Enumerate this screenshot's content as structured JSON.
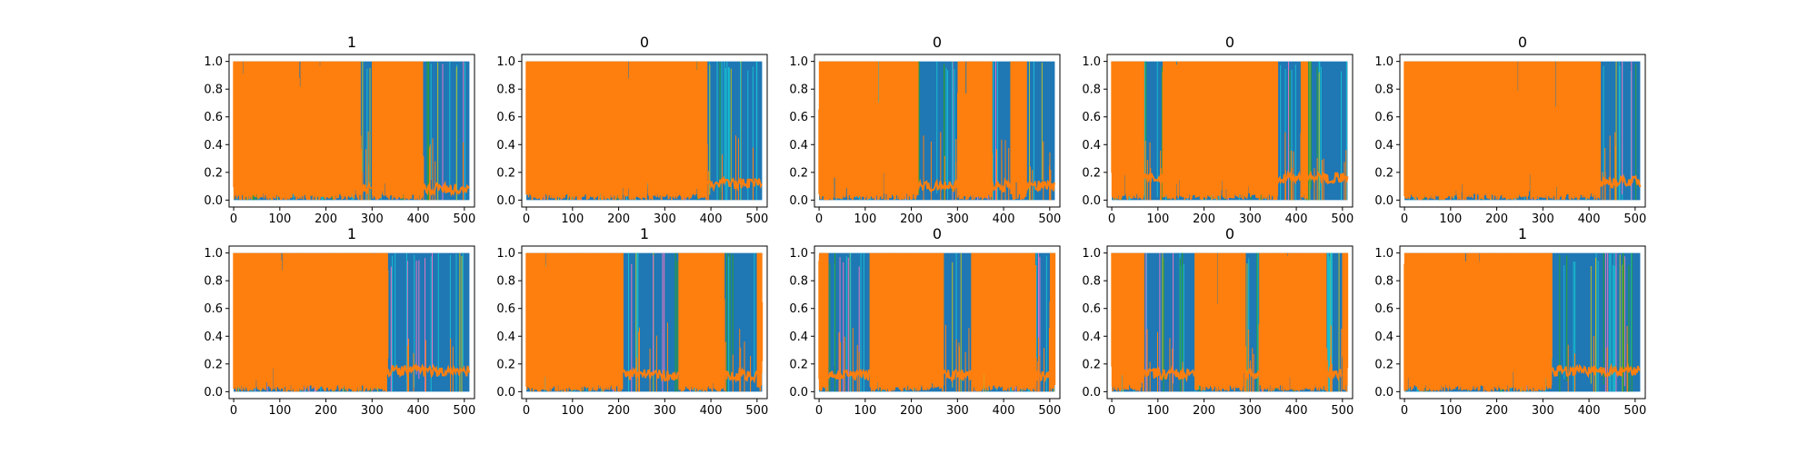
{
  "chart_data": [
    {
      "type": "line",
      "title": "1",
      "xlim": [
        -10,
        522
      ],
      "ylim": [
        -0.05,
        1.05
      ],
      "xticks": [
        "0",
        "100",
        "200",
        "300",
        "400",
        "500"
      ],
      "yticks": [
        "0.0",
        "0.2",
        "0.4",
        "0.6",
        "0.8",
        "1.0"
      ],
      "series": [
        {
          "color": "#1f77b4",
          "note": "background fill",
          "x": [
            0,
            511
          ],
          "y": [
            0,
            1
          ]
        },
        {
          "color": "#ff7f0e",
          "step_x": 415,
          "y_before": [
            0.02,
            1.0
          ],
          "y_after_baseline": 0.08
        }
      ],
      "blue_blocks": [
        [
          275,
          300
        ],
        [
          410,
          511
        ]
      ]
    },
    {
      "type": "line",
      "title": "0",
      "xlim": [
        -10,
        522
      ],
      "ylim": [
        -0.05,
        1.05
      ],
      "xticks": [
        "0",
        "100",
        "200",
        "300",
        "400",
        "500"
      ],
      "yticks": [
        "0.0",
        "0.2",
        "0.4",
        "0.6",
        "0.8",
        "1.0"
      ],
      "series": [
        {
          "color": "#1f77b4",
          "x": [
            0,
            511
          ],
          "y": [
            0,
            1
          ]
        },
        {
          "color": "#ff7f0e",
          "step_x": 392,
          "y_before": [
            0.05,
            1.0
          ],
          "y_after_baseline": 0.12
        }
      ],
      "blue_blocks": [
        [
          392,
          511
        ]
      ]
    },
    {
      "type": "line",
      "title": "0",
      "xlim": [
        -10,
        522
      ],
      "ylim": [
        -0.05,
        1.05
      ],
      "xticks": [
        "0",
        "100",
        "200",
        "300",
        "400",
        "500"
      ],
      "yticks": [
        "0.0",
        "0.2",
        "0.4",
        "0.6",
        "0.8",
        "1.0"
      ],
      "series": [
        {
          "color": "#1f77b4",
          "x": [
            0,
            511
          ],
          "y": [
            0,
            1
          ]
        },
        {
          "color": "#ff7f0e",
          "step_x": 450,
          "y_before": [
            0.05,
            1.0
          ],
          "y_after_baseline": 0.1
        }
      ],
      "blue_blocks": [
        [
          215,
          300
        ],
        [
          375,
          415
        ],
        [
          450,
          511
        ]
      ]
    },
    {
      "type": "line",
      "title": "0",
      "xlim": [
        -10,
        522
      ],
      "ylim": [
        -0.05,
        1.05
      ],
      "xticks": [
        "0",
        "100",
        "200",
        "300",
        "400",
        "500"
      ],
      "yticks": [
        "0.0",
        "0.2",
        "0.4",
        "0.6",
        "0.8",
        "1.0"
      ],
      "series": [
        {
          "color": "#1f77b4",
          "x": [
            0,
            511
          ],
          "y": [
            0,
            1
          ]
        },
        {
          "color": "#ff7f0e",
          "step_x": 425,
          "y_before": [
            0.05,
            1.0
          ],
          "y_after_baseline": 0.16
        }
      ],
      "blue_blocks": [
        [
          70,
          110
        ],
        [
          360,
          410
        ],
        [
          425,
          511
        ]
      ]
    },
    {
      "type": "line",
      "title": "0",
      "xlim": [
        -10,
        522
      ],
      "ylim": [
        -0.05,
        1.05
      ],
      "xticks": [
        "0",
        "100",
        "200",
        "300",
        "400",
        "500"
      ],
      "yticks": [
        "0.0",
        "0.2",
        "0.4",
        "0.6",
        "0.8",
        "1.0"
      ],
      "series": [
        {
          "color": "#1f77b4",
          "x": [
            0,
            511
          ],
          "y": [
            0,
            1
          ]
        },
        {
          "color": "#ff7f0e",
          "step_x": 425,
          "y_before": [
            0.05,
            1.0
          ],
          "y_after_baseline": 0.13
        }
      ],
      "blue_blocks": [
        [
          425,
          511
        ]
      ]
    },
    {
      "type": "line",
      "title": "1",
      "xlim": [
        -10,
        522
      ],
      "ylim": [
        -0.05,
        1.05
      ],
      "xticks": [
        "0",
        "100",
        "200",
        "300",
        "400",
        "500"
      ],
      "yticks": [
        "0.0",
        "0.2",
        "0.4",
        "0.6",
        "0.8",
        "1.0"
      ],
      "series": [
        {
          "color": "#1f77b4",
          "x": [
            0,
            511
          ],
          "y": [
            0,
            1
          ]
        },
        {
          "color": "#ff7f0e",
          "step_x": 385,
          "y_before": [
            0.05,
            1.0
          ],
          "y_after_baseline": 0.15
        }
      ],
      "blue_blocks": [
        [
          335,
          511
        ]
      ]
    },
    {
      "type": "line",
      "title": "1",
      "xlim": [
        -10,
        522
      ],
      "ylim": [
        -0.05,
        1.05
      ],
      "xticks": [
        "0",
        "100",
        "200",
        "300",
        "400",
        "500"
      ],
      "yticks": [
        "0.0",
        "0.2",
        "0.4",
        "0.6",
        "0.8",
        "1.0"
      ],
      "series": [
        {
          "color": "#1f77b4",
          "x": [
            0,
            511
          ],
          "y": [
            0,
            1
          ]
        },
        {
          "color": "#ff7f0e",
          "step_x": 210,
          "y_before": [
            0.05,
            1.0
          ],
          "y_after_baseline": 0.12
        }
      ],
      "blue_blocks": [
        [
          210,
          330
        ],
        [
          430,
          500
        ]
      ]
    },
    {
      "type": "line",
      "title": "0",
      "xlim": [
        -10,
        522
      ],
      "ylim": [
        -0.05,
        1.05
      ],
      "xticks": [
        "0",
        "100",
        "200",
        "300",
        "400",
        "500"
      ],
      "yticks": [
        "0.0",
        "0.2",
        "0.4",
        "0.6",
        "0.8",
        "1.0"
      ],
      "series": [
        {
          "color": "#1f77b4",
          "x": [
            0,
            511
          ],
          "y": [
            0,
            1
          ]
        },
        {
          "color": "#ff7f0e",
          "step_x": 20,
          "y_before": [
            0.05,
            1.0
          ],
          "y_after_baseline": 0.12
        }
      ],
      "blue_blocks": [
        [
          20,
          110
        ],
        [
          270,
          330
        ],
        [
          470,
          500
        ]
      ]
    },
    {
      "type": "line",
      "title": "0",
      "xlim": [
        -10,
        522
      ],
      "ylim": [
        -0.05,
        1.05
      ],
      "xticks": [
        "0",
        "100",
        "200",
        "300",
        "400",
        "500"
      ],
      "yticks": [
        "0.0",
        "0.2",
        "0.4",
        "0.6",
        "0.8",
        "1.0"
      ],
      "series": [
        {
          "color": "#1f77b4",
          "x": [
            0,
            511
          ],
          "y": [
            0,
            1
          ]
        },
        {
          "color": "#ff7f0e",
          "step_x": 70,
          "y_before": [
            0.05,
            1.0
          ],
          "y_after_baseline": 0.13
        }
      ],
      "blue_blocks": [
        [
          70,
          180
        ],
        [
          290,
          320
        ],
        [
          465,
          500
        ]
      ]
    },
    {
      "type": "line",
      "title": "1",
      "xlim": [
        -10,
        522
      ],
      "ylim": [
        -0.05,
        1.05
      ],
      "xticks": [
        "0",
        "100",
        "200",
        "300",
        "400",
        "500"
      ],
      "yticks": [
        "0.0",
        "0.2",
        "0.4",
        "0.6",
        "0.8",
        "1.0"
      ],
      "series": [
        {
          "color": "#1f77b4",
          "x": [
            0,
            511
          ],
          "y": [
            0,
            1
          ]
        },
        {
          "color": "#ff7f0e",
          "step_x": 320,
          "y_before": [
            0.05,
            1.0
          ],
          "y_after_baseline": 0.15
        }
      ],
      "blue_blocks": [
        [
          320,
          511
        ]
      ]
    }
  ],
  "colors": {
    "blue": "#1f77b4",
    "orange": "#ff7f0e",
    "cyan": "#17becf",
    "olive": "#bcbd22",
    "green": "#2ca02c",
    "pink": "#e377c2"
  }
}
